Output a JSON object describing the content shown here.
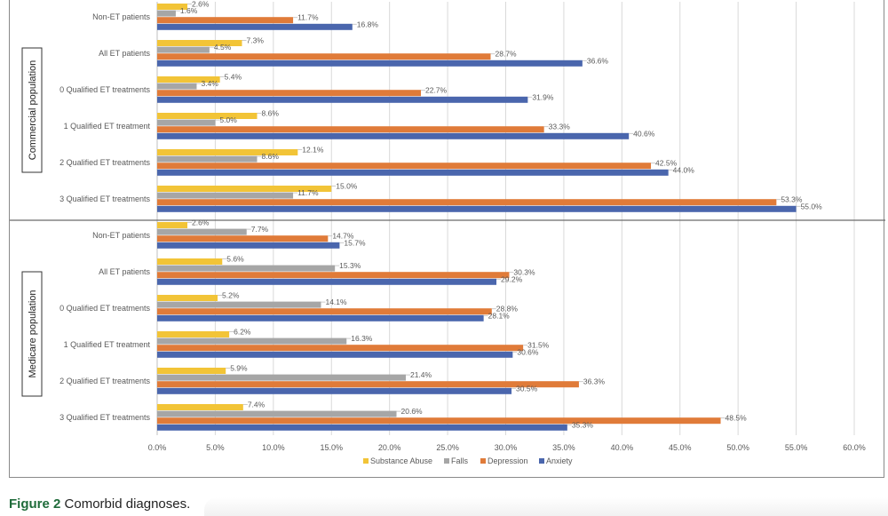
{
  "caption": {
    "label": "Figure 2",
    "text": "Comorbid diagnoses."
  },
  "colors": {
    "Substance Abuse": "#f2c437",
    "Falls": "#a6a6a6",
    "Depression": "#e07b39",
    "Anxiety": "#4a66ad",
    "grid": "#d9d9d9",
    "axis": "#bfbfbf",
    "text": "#595959"
  },
  "chart_data": {
    "type": "bar",
    "orientation": "horizontal",
    "xlim": [
      0,
      60
    ],
    "xticks": [
      "0.0%",
      "5.0%",
      "10.0%",
      "15.0%",
      "20.0%",
      "25.0%",
      "30.0%",
      "35.0%",
      "40.0%",
      "45.0%",
      "50.0%",
      "55.0%",
      "60.0%"
    ],
    "grid": true,
    "legend_position": "bottom",
    "series_names": [
      "Substance Abuse",
      "Falls",
      "Depression",
      "Anxiety"
    ],
    "groups": [
      {
        "population": "Commercial population",
        "categories": [
          "Non-ET patients",
          "All ET patients",
          "0 Qualified ET treatments",
          "1 Qualified ET treatment",
          "2 Qualified ET treatments",
          "3 Qualified ET treatments"
        ],
        "series": [
          {
            "name": "Substance Abuse",
            "values": [
              2.6,
              7.3,
              5.4,
              8.6,
              12.1,
              15.0
            ]
          },
          {
            "name": "Falls",
            "values": [
              1.6,
              4.5,
              3.4,
              5.0,
              8.6,
              11.7
            ]
          },
          {
            "name": "Depression",
            "values": [
              11.7,
              28.7,
              22.7,
              33.3,
              42.5,
              53.3
            ]
          },
          {
            "name": "Anxiety",
            "values": [
              16.8,
              36.6,
              31.9,
              40.6,
              44.0,
              55.0
            ]
          }
        ]
      },
      {
        "population": "Medicare population",
        "categories": [
          "Non-ET patients",
          "All ET patients",
          "0 Qualified ET treatments",
          "1 Qualified ET treatment",
          "2 Qualified ET treatments",
          "3 Qualified ET treatments"
        ],
        "series": [
          {
            "name": "Substance Abuse",
            "values": [
              2.6,
              5.6,
              5.2,
              6.2,
              5.9,
              7.4
            ]
          },
          {
            "name": "Falls",
            "values": [
              7.7,
              15.3,
              14.1,
              16.3,
              21.4,
              20.6
            ]
          },
          {
            "name": "Depression",
            "values": [
              14.7,
              30.3,
              28.8,
              31.5,
              36.3,
              48.5
            ]
          },
          {
            "name": "Anxiety",
            "values": [
              15.7,
              29.2,
              28.1,
              30.6,
              30.5,
              35.3
            ]
          }
        ]
      }
    ]
  }
}
